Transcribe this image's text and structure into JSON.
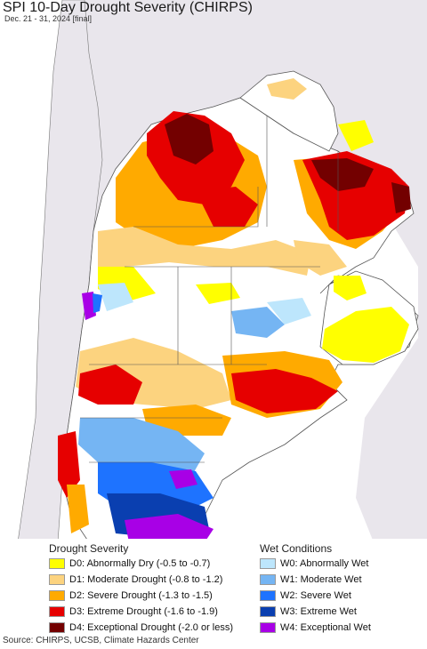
{
  "header": {
    "title": "SPI 10-Day Drought Severity (CHIRPS)",
    "subtitle": "Dec. 21 - 31, 2024 [final]"
  },
  "legend": {
    "drought_heading": "Drought Severity",
    "wet_heading": "Wet Conditions",
    "drought_items": [
      {
        "label": "D0: Abnormally Dry (-0.5 to -0.7)",
        "color": "#ffff00"
      },
      {
        "label": "D1: Moderate Drought (-0.8 to -1.2)",
        "color": "#fcd37f"
      },
      {
        "label": "D2: Severe Drought (-1.3 to -1.5)",
        "color": "#ffaa00"
      },
      {
        "label": "D3: Extreme Drought (-1.6 to -1.9)",
        "color": "#e60000"
      },
      {
        "label": "D4: Exceptional Drought (-2.0 or less)",
        "color": "#730000"
      }
    ],
    "wet_items": [
      {
        "label": "W0: Abnormally Wet",
        "color": "#bde6fc"
      },
      {
        "label": "W1: Moderate Wet",
        "color": "#75b5f3"
      },
      {
        "label": "W2: Severe Wet",
        "color": "#1e73ff"
      },
      {
        "label": "W3: Extreme Wet",
        "color": "#0a3fb0"
      },
      {
        "label": "W4: Exceptional Wet",
        "color": "#a800e6"
      }
    ]
  },
  "map_colors": {
    "ocean": "#ffffff",
    "outside_land": "#e9e6ec",
    "normal": "#ffffff",
    "border": "#555555"
  },
  "footer": {
    "source": "Source: CHIRPS, UCSB, Climate Hazards Center"
  }
}
